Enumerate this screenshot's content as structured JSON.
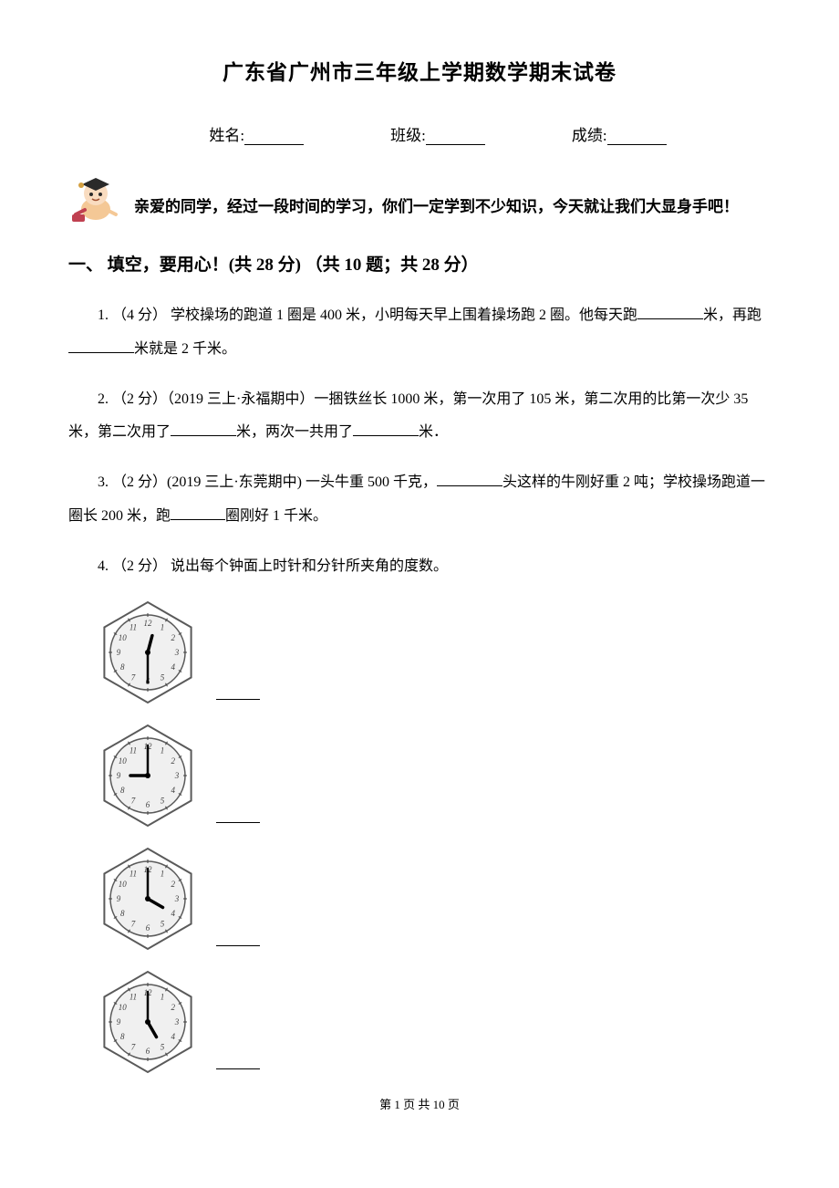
{
  "title": "广东省广州市三年级上学期数学期末试卷",
  "fields": {
    "name_label": "姓名:",
    "class_label": "班级:",
    "score_label": "成绩:"
  },
  "greeting": "亲爱的同学，经过一段时间的学习，你们一定学到不少知识，今天就让我们大显身手吧！",
  "section1": {
    "header": "一、 填空，要用心！(共 28 分)  （共 10 题；共 28 分）"
  },
  "questions": {
    "q1_pre": "1. （4 分） 学校操场的跑道 1 圈是 400 米，小明每天早上围着操场跑 2 圈。他每天跑",
    "q1_mid": "米，再跑",
    "q1_end": "米就是 2 千米。",
    "q2_pre": "2. （2 分）（2019 三上·永福期中）一捆铁丝长 1000 米，第一次用了 105 米，第二次用的比第一次少 35 米，第二次用了",
    "q2_mid": "米，两次一共用了",
    "q2_end": "米．",
    "q3_pre": "3. （2 分）(2019 三上·东莞期中) 一头牛重 500 千克，",
    "q3_mid": "头这样的牛刚好重 2 吨；学校操场跑道一圈长 200 米，跑",
    "q3_end": "圈刚好 1 千米。",
    "q4": "4. （2 分） 说出每个钟面上时针和分针所夹角的度数。"
  },
  "clocks": [
    {
      "hour": 12,
      "minute": 30
    },
    {
      "hour": 9,
      "minute": 0
    },
    {
      "hour": 4,
      "minute": 0
    },
    {
      "hour": 5,
      "minute": 0
    }
  ],
  "clock_style": {
    "size": 114,
    "stroke": "#5a5a5a",
    "stroke_width": 2,
    "face_fill": "#f0f0f0",
    "hand_color": "#000000"
  },
  "footer": "第 1 页 共 10 页"
}
